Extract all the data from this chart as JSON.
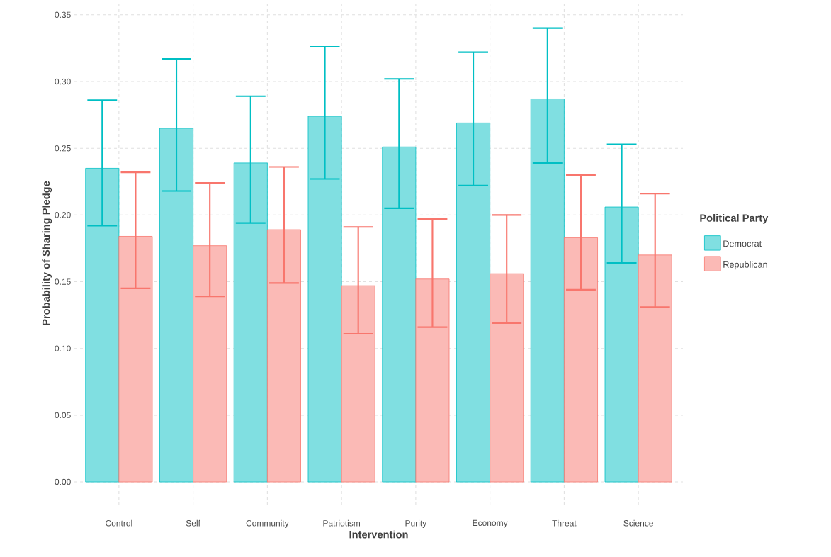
{
  "chart_data": {
    "type": "bar",
    "xlabel": "Intervention",
    "ylabel": "Probability of Sharing Pledge",
    "legend_title": "Political Party",
    "categories": [
      "Control",
      "Self",
      "Community",
      "Patriotism",
      "Purity",
      "Economy",
      "Threat",
      "Science"
    ],
    "series": [
      {
        "name": "Democrat",
        "color": "#00bfc4",
        "values": [
          0.235,
          0.265,
          0.239,
          0.274,
          0.251,
          0.269,
          0.287,
          0.206
        ],
        "errors": [
          [
            0.192,
            0.286
          ],
          [
            0.218,
            0.317
          ],
          [
            0.194,
            0.289
          ],
          [
            0.227,
            0.326
          ],
          [
            0.205,
            0.302
          ],
          [
            0.222,
            0.322
          ],
          [
            0.239,
            0.34
          ],
          [
            0.164,
            0.253
          ]
        ]
      },
      {
        "name": "Republican",
        "color": "#f8766d",
        "values": [
          0.184,
          0.177,
          0.189,
          0.147,
          0.152,
          0.156,
          0.183,
          0.17
        ],
        "errors": [
          [
            0.145,
            0.232
          ],
          [
            0.139,
            0.224
          ],
          [
            0.149,
            0.236
          ],
          [
            0.111,
            0.191
          ],
          [
            0.116,
            0.197
          ],
          [
            0.119,
            0.2
          ],
          [
            0.144,
            0.23
          ],
          [
            0.131,
            0.216
          ]
        ]
      }
    ],
    "ylim": [
      -0.0175,
      0.36
    ],
    "yticks": [
      {
        "value": 0,
        "label": "0.00"
      },
      {
        "value": 0.05,
        "label": "0.05"
      },
      {
        "value": 0.1,
        "label": "0.10"
      },
      {
        "value": 0.15,
        "label": "0.15"
      },
      {
        "value": 0.2,
        "label": "0.20"
      },
      {
        "value": 0.25,
        "label": "0.25"
      },
      {
        "value": 0.3,
        "label": "0.30"
      },
      {
        "value": 0.35,
        "label": "0.35"
      }
    ],
    "grid": true,
    "legend": "right"
  }
}
